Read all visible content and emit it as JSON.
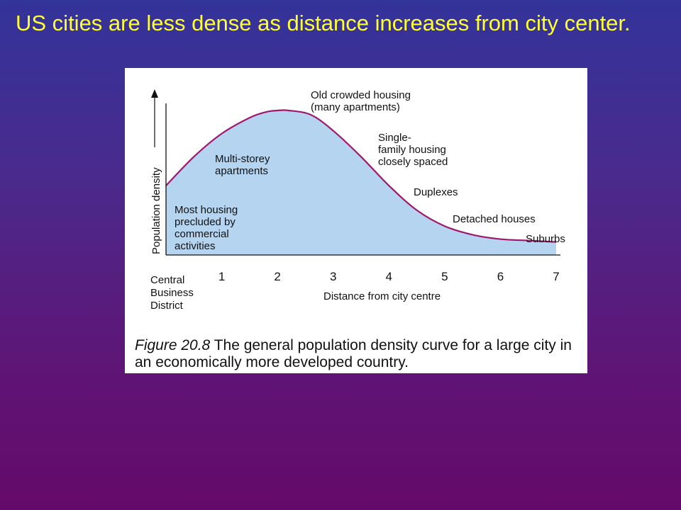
{
  "slide": {
    "title": "US cities are less dense as distance increases from city center."
  },
  "colors": {
    "background_top": "#33339a",
    "background_bottom": "#640a6a",
    "title": "#ffff33",
    "curve": "#a0186e",
    "fill": "#b4d4f0"
  },
  "chart_data": {
    "type": "area",
    "ylabel": "Population density",
    "xlabel": "Distance from city centre",
    "origin_label": [
      "Central",
      "Business",
      "District"
    ],
    "x_ticks": [
      "1",
      "2",
      "3",
      "4",
      "5",
      "6",
      "7"
    ],
    "xlim": [
      0,
      7
    ],
    "ylim": [
      0,
      1
    ],
    "x": [
      0,
      0.5,
      1,
      1.5,
      1.8,
      2,
      2.2,
      2.6,
      3,
      3.5,
      4,
      4.5,
      5,
      5.5,
      6,
      6.5,
      7
    ],
    "y": [
      0.48,
      0.68,
      0.84,
      0.95,
      0.99,
      1.0,
      1.0,
      0.97,
      0.86,
      0.68,
      0.48,
      0.31,
      0.2,
      0.14,
      0.11,
      0.1,
      0.09
    ],
    "annotations": [
      {
        "lines": [
          "Most housing",
          "precluded by",
          "commercial",
          "activities"
        ]
      },
      {
        "lines": [
          "Multi-storey",
          "apartments"
        ]
      },
      {
        "lines": [
          "Old crowded housing",
          "(many apartments)"
        ]
      },
      {
        "lines": [
          "Single-",
          "family housing",
          "closely spaced"
        ]
      },
      {
        "lines": [
          "Duplexes"
        ]
      },
      {
        "lines": [
          "Detached houses"
        ]
      },
      {
        "lines": [
          "Suburbs"
        ]
      }
    ],
    "grid": false,
    "legend": "none"
  },
  "caption": {
    "figure_label": "Figure 20.8",
    "text": "The general population density curve for a large city in an economically more developed country."
  }
}
